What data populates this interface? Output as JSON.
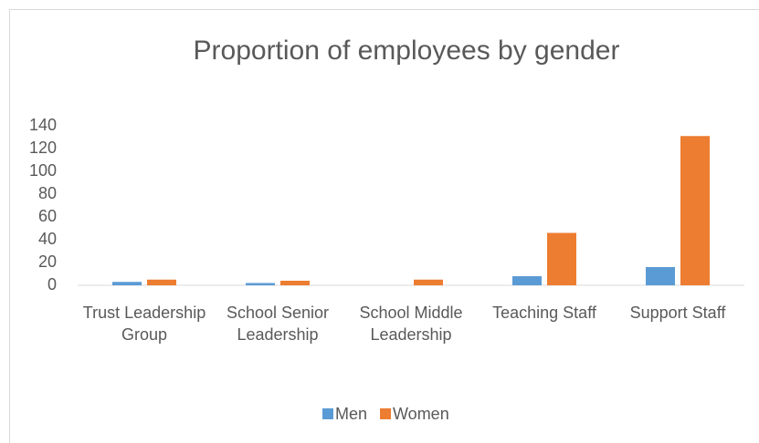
{
  "chart_data": {
    "type": "bar",
    "title": "Proportion of employees by gender",
    "categories": [
      "Trust Leadership Group",
      "School Senior Leadership",
      "School Middle Leadership",
      "Teaching Staff",
      "Support Staff"
    ],
    "series": [
      {
        "name": "Men",
        "color": "#5b9bd5",
        "values": [
          3,
          2,
          0,
          8,
          16
        ]
      },
      {
        "name": "Women",
        "color": "#ed7d31",
        "values": [
          5,
          4,
          5,
          46,
          131
        ]
      }
    ],
    "ylim": [
      0,
      140
    ],
    "yticks": [
      0,
      20,
      40,
      60,
      80,
      100,
      120,
      140
    ],
    "grid": false,
    "legend": "bottom"
  }
}
